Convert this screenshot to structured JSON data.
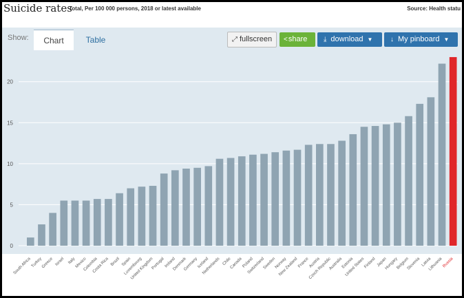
{
  "header": {
    "title": "Suicide rates",
    "subtitle": "Total, Per 100 000 persons, 2018 or latest available",
    "source": "Source: Health statu"
  },
  "toolbar": {
    "show_label": "Show:",
    "tab_chart": "Chart",
    "tab_table": "Table",
    "fullscreen_label": "fullscreen",
    "share_label": "share",
    "download_label": "download",
    "pinboard_label": "My pinboard"
  },
  "colors": {
    "bar": "#8fa4b2",
    "highlight": "#e0262a",
    "plot_bg": "#dfe9f0"
  },
  "chart_data": {
    "type": "bar",
    "title": "Suicide rates",
    "subtitle": "Total, Per 100 000 persons, 2018 or latest available",
    "ylim": [
      0,
      23.5
    ],
    "yticks": [
      0,
      5,
      10,
      15,
      20
    ],
    "grid": true,
    "highlight": "Russia",
    "categories": [
      "South Africa",
      "Turkey",
      "Greece",
      "Israel",
      "Italy",
      "Mexico",
      "Colombia",
      "Costa Rica",
      "Brazil",
      "Spain",
      "Luxembourg",
      "United Kingdom",
      "Portugal",
      "Ireland",
      "Denmark",
      "Germany",
      "Iceland",
      "Netherlands",
      "Chile",
      "Canada",
      "Poland",
      "Switzerland",
      "Sweden",
      "Norway",
      "New Zealand",
      "France",
      "Austria",
      "Czech Republic",
      "Australia",
      "Estonia",
      "United States",
      "Finland",
      "Japan",
      "Hungary",
      "Belgium",
      "Slovenia",
      "Latvia",
      "Lithuania",
      "Russia"
    ],
    "values": [
      1.0,
      2.6,
      4.0,
      5.5,
      5.5,
      5.5,
      5.7,
      5.7,
      6.4,
      7.0,
      7.2,
      7.3,
      8.8,
      9.2,
      9.4,
      9.5,
      9.7,
      10.6,
      10.7,
      10.9,
      11.1,
      11.2,
      11.4,
      11.6,
      11.7,
      12.3,
      12.4,
      12.4,
      12.8,
      13.6,
      14.5,
      14.6,
      14.8,
      15.0,
      15.8,
      17.3,
      18.1,
      22.2,
      23.0
    ]
  }
}
